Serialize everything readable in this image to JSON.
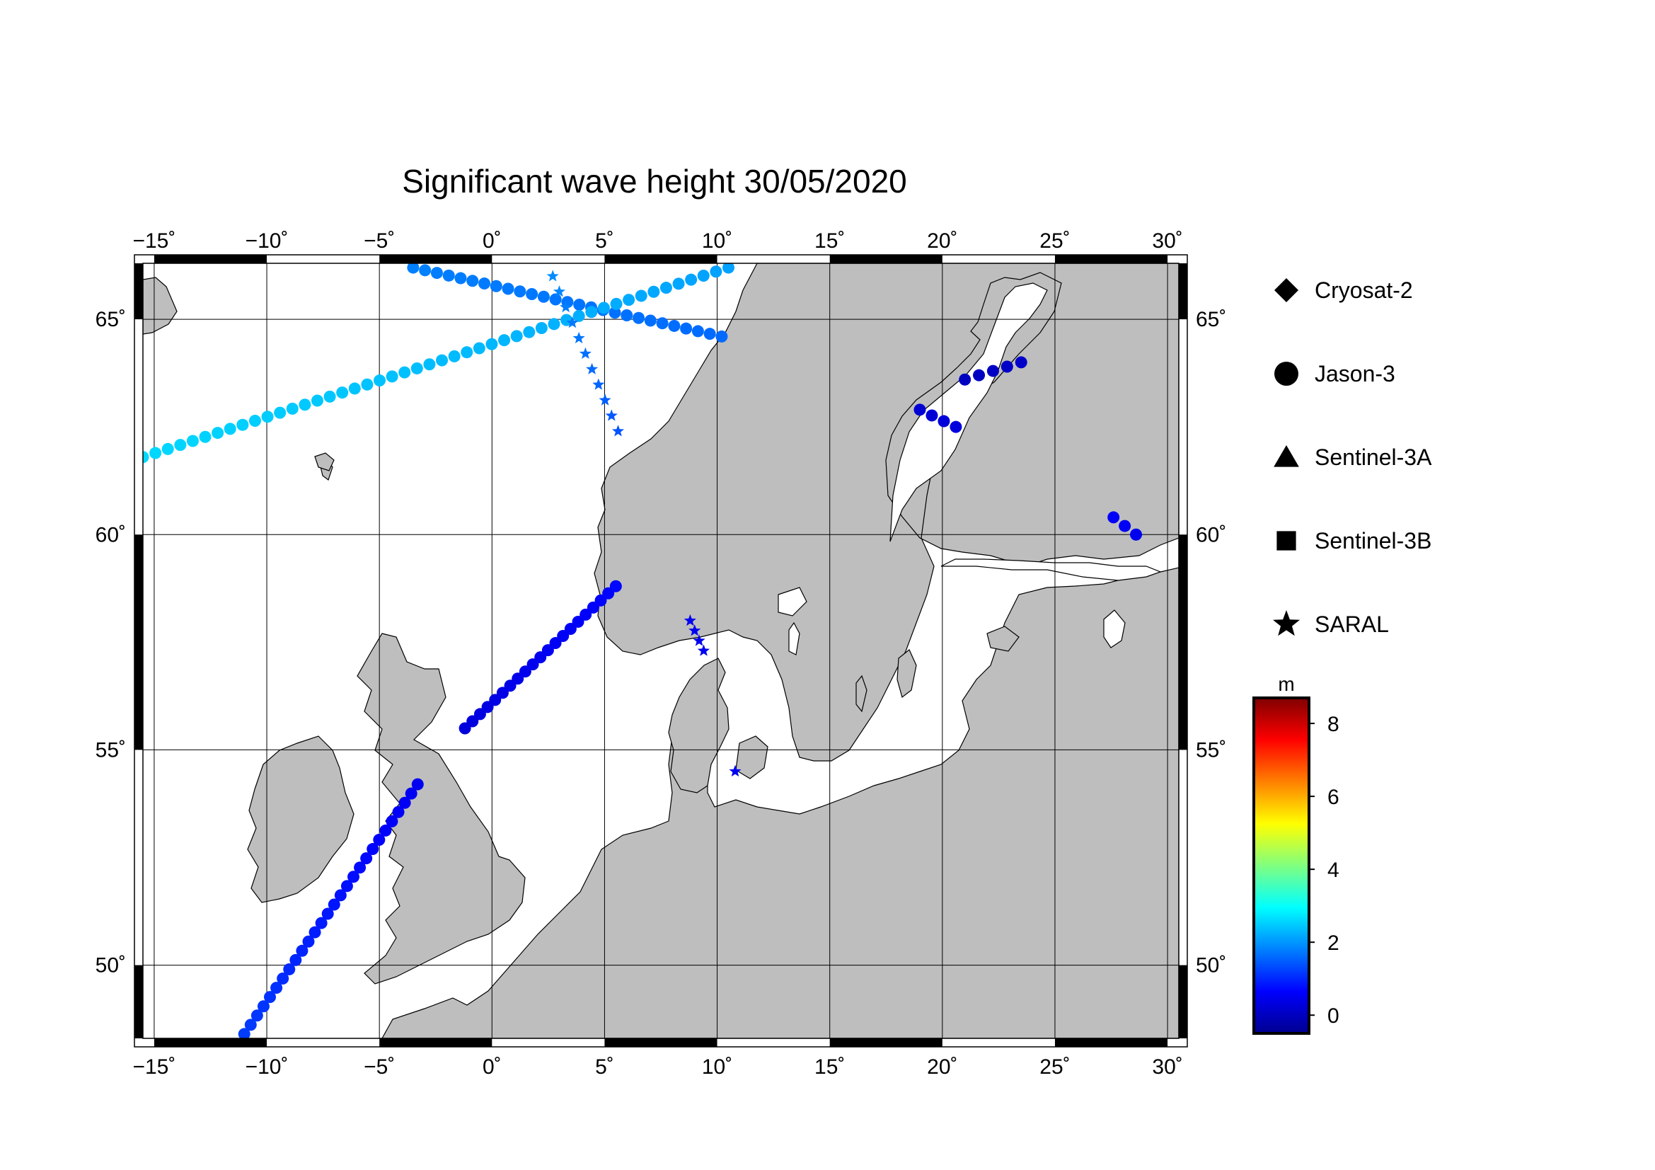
{
  "title": "Significant wave height 30/05/2020",
  "map": {
    "lon_range": [
      -15.5,
      30.5
    ],
    "lat_range": [
      48.3,
      66.3
    ],
    "lon_ticks": [
      -15,
      -10,
      -5,
      0,
      5,
      10,
      15,
      20,
      25,
      30
    ],
    "lat_ticks": [
      50,
      55,
      60,
      65
    ],
    "lon_tick_labels": [
      "−15˚",
      "−10˚",
      "−5˚",
      "0˚",
      "5˚",
      "10˚",
      "15˚",
      "20˚",
      "25˚",
      "30˚"
    ],
    "lat_tick_labels": [
      "50˚",
      "55˚",
      "60˚",
      "65˚"
    ],
    "grid": true,
    "land_color": "#bebebe",
    "sea_color": "#ffffff"
  },
  "legend": {
    "placement": "right",
    "items": [
      {
        "label": "Cryosat-2",
        "symbol": "diamond"
      },
      {
        "label": "Jason-3",
        "symbol": "circle"
      },
      {
        "label": "Sentinel-3A",
        "symbol": "triangle"
      },
      {
        "label": "Sentinel-3B",
        "symbol": "square"
      },
      {
        "label": "SARAL",
        "symbol": "star"
      }
    ]
  },
  "colorbar": {
    "unit": "m",
    "range": [
      -0.5,
      8.7
    ],
    "ticks": [
      0,
      2,
      4,
      6,
      8
    ],
    "tick_labels": [
      "0",
      "2",
      "4",
      "6",
      "8"
    ],
    "colors": [
      "#00008f",
      "#0000ff",
      "#0080ff",
      "#00ffff",
      "#80ff80",
      "#ffff00",
      "#ff8000",
      "#ff0000",
      "#800000"
    ]
  },
  "chart_data": {
    "type": "scatter",
    "title": "Significant wave height 30/05/2020",
    "xlabel": "",
    "ylabel": "",
    "xlim": [
      -15.5,
      30.5
    ],
    "ylim": [
      48.3,
      66.3
    ],
    "series": [
      {
        "name": "Jason-3",
        "symbol": "circle",
        "tracks": [
          {
            "start": [
              -3.5,
              66.2
            ],
            "end": [
              10.2,
              64.6
            ],
            "n": 27,
            "swh_start": 1.8,
            "swh_end": 1.6
          },
          {
            "start": [
              -15.5,
              61.8
            ],
            "end": [
              10.5,
              66.2
            ],
            "n": 48,
            "swh_start": 2.6,
            "swh_end": 2.1
          },
          {
            "start": [
              -1.2,
              55.5
            ],
            "end": [
              5.5,
              58.8
            ],
            "n": 21,
            "swh_start": 0.3,
            "swh_end": 0.7
          },
          {
            "start": [
              -11.0,
              48.4
            ],
            "end": [
              -3.3,
              54.2
            ],
            "n": 28,
            "swh_start": 1.2,
            "swh_end": 0.5
          },
          {
            "start": [
              19.0,
              62.9
            ],
            "end": [
              20.6,
              62.5
            ],
            "n": 4,
            "swh_start": 0.2,
            "swh_end": 0.3
          },
          {
            "start": [
              21.0,
              63.6
            ],
            "end": [
              23.5,
              64.0
            ],
            "n": 5,
            "swh_start": 0.0,
            "swh_end": 0.1
          },
          {
            "start": [
              27.6,
              60.4
            ],
            "end": [
              28.6,
              60.0
            ],
            "n": 3,
            "swh_start": 0.6,
            "swh_end": 0.5
          }
        ]
      },
      {
        "name": "SARAL",
        "symbol": "star",
        "tracks": [
          {
            "start": [
              2.7,
              66.0
            ],
            "end": [
              5.6,
              62.4
            ],
            "n": 11,
            "swh_start": 1.9,
            "swh_end": 1.4
          },
          {
            "start": [
              8.8,
              58.0
            ],
            "end": [
              9.4,
              57.3
            ],
            "n": 4,
            "swh_start": 0.5,
            "swh_end": 0.5
          },
          {
            "start": [
              10.8,
              54.5
            ],
            "end": [
              10.8,
              54.5
            ],
            "n": 1,
            "swh_start": 0.5,
            "swh_end": 0.5
          }
        ]
      },
      {
        "name": "Cryosat-2",
        "symbol": "diamond",
        "tracks": []
      },
      {
        "name": "Sentinel-3A",
        "symbol": "triangle",
        "tracks": []
      },
      {
        "name": "Sentinel-3B",
        "symbol": "square",
        "tracks": []
      }
    ]
  }
}
